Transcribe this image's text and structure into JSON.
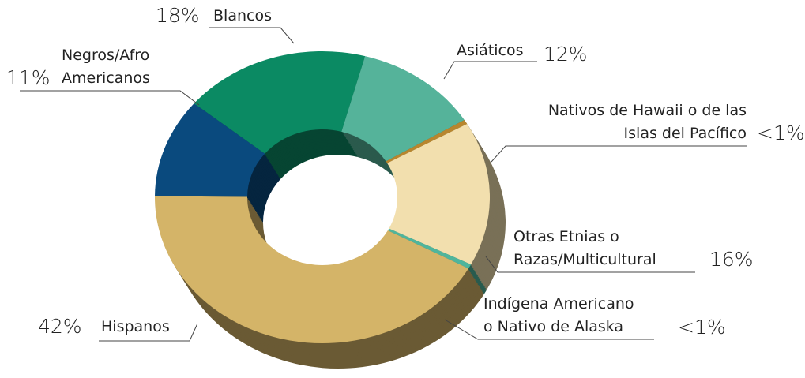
{
  "chart_data": {
    "type": "donut",
    "categories": [
      "Blancos",
      "Asiáticos",
      "Nativos de Hawaii o de las Islas del Pacífico",
      "Otras Etnias o Razas/Multicultural",
      "Indígena Americano o Nativo de Alaska",
      "Hispanos",
      "Negros/Afro Americanos"
    ],
    "values": [
      18,
      12,
      0.5,
      16,
      0.5,
      42,
      11
    ],
    "value_labels": [
      "18%",
      "12%",
      "<1%",
      "16%",
      "<1%",
      "42%",
      "11%"
    ],
    "colors": [
      "#0b8a63",
      "#55b39a",
      "#b8862e",
      "#f2dfae",
      "#4fb59c",
      "#d4b468",
      "#0a4a7e"
    ]
  }
}
